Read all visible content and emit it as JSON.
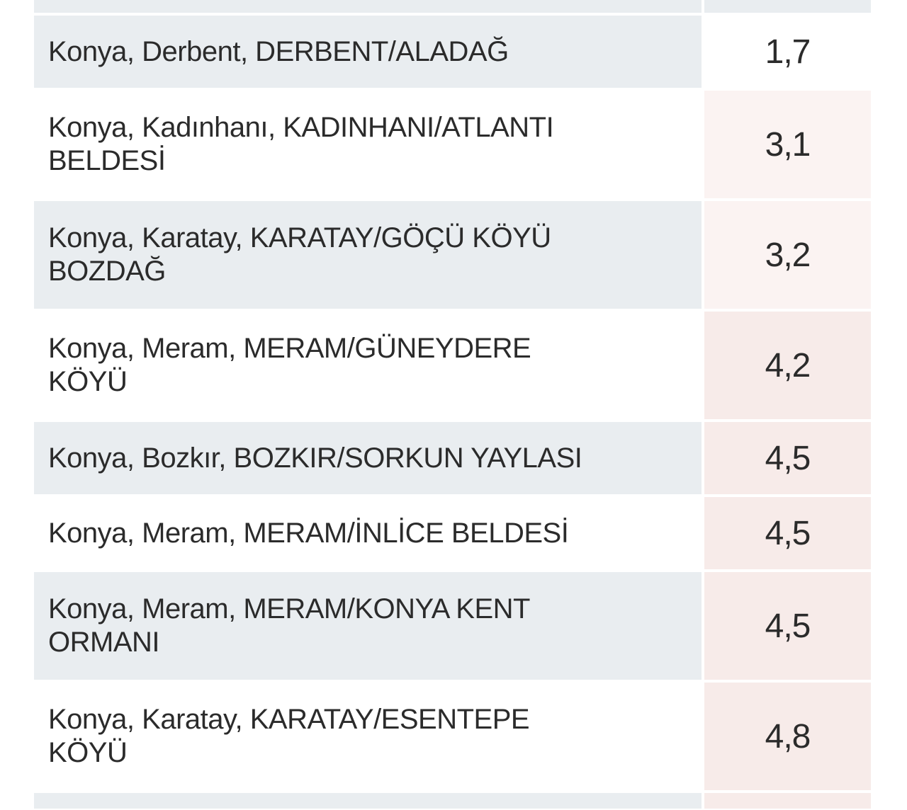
{
  "page": {
    "background": "#ffffff"
  },
  "table": {
    "description_columns": [
      "location",
      "magnitude"
    ],
    "colors": {
      "stripe_gray": "#e9edf0",
      "row_white": "#ffffff",
      "tint_none": "#ffffff",
      "tint_light": "#fbf3f2",
      "tint_strong": "#f7ebe9",
      "text": "#2b2b2b"
    },
    "rows": [
      {
        "type": "partial-top",
        "location_lines": [],
        "value": "",
        "left_bg": "stripe_gray",
        "right_bg": "stripe_gray"
      },
      {
        "type": "row",
        "location_lines": [
          "Konya, Derbent, DERBENT/ALADAĞ"
        ],
        "value": "1,7",
        "left_bg": "stripe_gray",
        "right_bg": "tint_none"
      },
      {
        "type": "row",
        "location_lines": [
          "Konya, Kadınhanı, KADINHANI/ATLANTI",
          "BELDESİ"
        ],
        "value": "3,1",
        "left_bg": "row_white",
        "right_bg": "tint_light"
      },
      {
        "type": "row",
        "location_lines": [
          "Konya, Karatay, KARATAY/GÖÇÜ KÖYÜ",
          "BOZDAĞ"
        ],
        "value": "3,2",
        "left_bg": "stripe_gray",
        "right_bg": "tint_light"
      },
      {
        "type": "row",
        "location_lines": [
          "Konya, Meram, MERAM/GÜNEYDERE",
          "KÖYÜ"
        ],
        "value": "4,2",
        "left_bg": "row_white",
        "right_bg": "tint_strong"
      },
      {
        "type": "row",
        "location_lines": [
          "Konya, Bozkır, BOZKIR/SORKUN YAYLASI"
        ],
        "value": "4,5",
        "left_bg": "stripe_gray",
        "right_bg": "tint_strong"
      },
      {
        "type": "row",
        "location_lines": [
          "Konya, Meram, MERAM/İNLİCE BELDESİ"
        ],
        "value": "4,5",
        "left_bg": "row_white",
        "right_bg": "tint_strong"
      },
      {
        "type": "row",
        "location_lines": [
          "Konya, Meram, MERAM/KONYA KENT",
          "ORMANI"
        ],
        "value": "4,5",
        "left_bg": "stripe_gray",
        "right_bg": "tint_strong"
      },
      {
        "type": "row",
        "location_lines": [
          "Konya, Karatay, KARATAY/ESENTEPE",
          "KÖYÜ"
        ],
        "value": "4,8",
        "left_bg": "row_white",
        "right_bg": "tint_strong"
      },
      {
        "type": "partial-bottom",
        "location_lines": [],
        "value": "",
        "left_bg": "stripe_gray",
        "right_bg": "tint_strong"
      }
    ]
  }
}
